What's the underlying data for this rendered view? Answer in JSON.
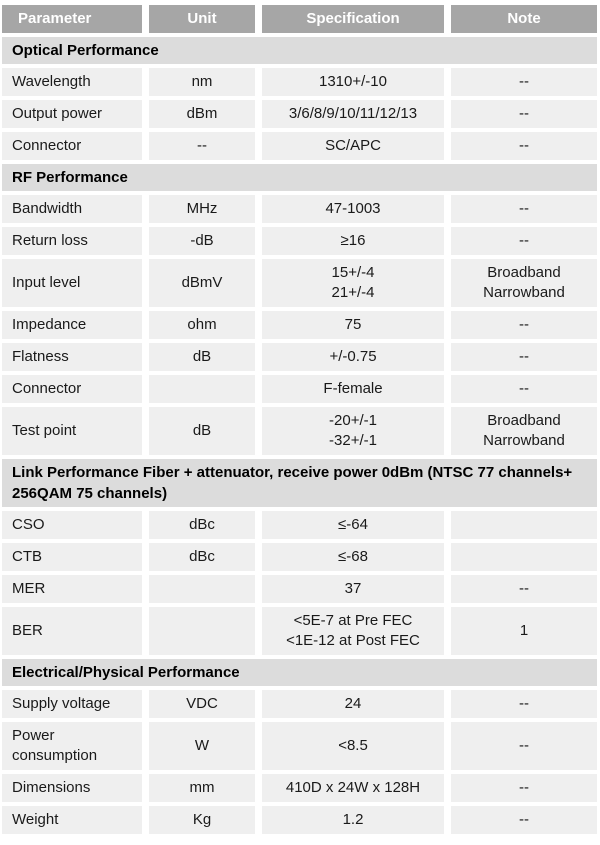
{
  "colors": {
    "header_background": "#a6a6a6",
    "header_text": "#ffffff",
    "section_background": "#dcdcdc",
    "row_background": "#efefef",
    "body_text": "#1a1a1a",
    "page_background": "#ffffff"
  },
  "table": {
    "columns": [
      "Parameter",
      "Unit",
      "Specification",
      "Note"
    ],
    "sections": [
      {
        "title": "Optical Performance",
        "rows": [
          {
            "param": "Wavelength",
            "unit": "nm",
            "spec": "1310+/-10",
            "note": "--"
          },
          {
            "param": "Output power",
            "unit": "dBm",
            "spec": "3/6/8/9/10/11/12/13",
            "note": "--"
          },
          {
            "param": "Connector",
            "unit": "--",
            "spec": "SC/APC",
            "note": "--"
          }
        ]
      },
      {
        "title": "RF Performance",
        "rows": [
          {
            "param": "Bandwidth",
            "unit": "MHz",
            "spec": "47-1003",
            "note": "--"
          },
          {
            "param": "Return loss",
            "unit": "-dB",
            "spec": "≥16",
            "note": "--"
          },
          {
            "param": "Input level",
            "unit": "dBmV",
            "spec": "15+/-4\n21+/-4",
            "note": "Broadband\nNarrowband"
          },
          {
            "param": "Impedance",
            "unit": "ohm",
            "spec": "75",
            "note": "--"
          },
          {
            "param": "Flatness",
            "unit": "dB",
            "spec": "+/-0.75",
            "note": "--"
          },
          {
            "param": "Connector",
            "unit": "",
            "spec": "F-female",
            "note": "--"
          },
          {
            "param": "Test point",
            "unit": "dB",
            "spec": "-20+/-1\n-32+/-1",
            "note": "Broadband\nNarrowband"
          }
        ]
      },
      {
        "title": "Link Performance Fiber + attenuator, receive power 0dBm (NTSC 77 channels+ 256QAM 75 channels)",
        "rows": [
          {
            "param": "CSO",
            "unit": "dBc",
            "spec": "≤-64",
            "note": ""
          },
          {
            "param": "CTB",
            "unit": "dBc",
            "spec": "≤-68",
            "note": ""
          },
          {
            "param": "MER",
            "unit": "",
            "spec": "37",
            "note": "--"
          },
          {
            "param": "BER",
            "unit": "",
            "spec": "<5E-7 at Pre FEC\n<1E-12 at Post FEC",
            "note": "1"
          }
        ]
      },
      {
        "title": "Electrical/Physical Performance",
        "rows": [
          {
            "param": "Supply voltage",
            "unit": "VDC",
            "spec": "24",
            "note": "--"
          },
          {
            "param": "Power\nconsumption",
            "unit": "W",
            "spec": "<8.5",
            "note": "--"
          },
          {
            "param": "Dimensions",
            "unit": "mm",
            "spec": "410D x 24W x 128H",
            "note": "--"
          },
          {
            "param": "Weight",
            "unit": "Kg",
            "spec": "1.2",
            "note": "--"
          }
        ]
      }
    ]
  }
}
